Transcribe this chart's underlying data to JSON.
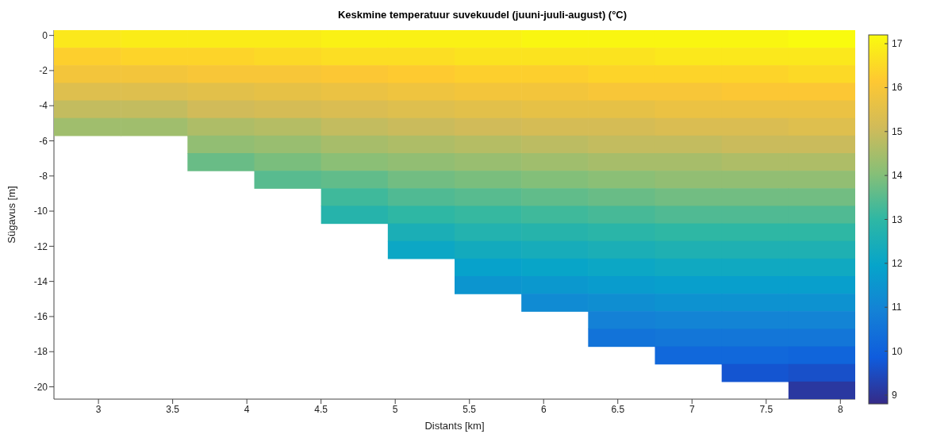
{
  "chart_data": {
    "type": "heatmap",
    "title": "Keskmine temperatuur suvekuudel (juuni-juuli-august) (°C)",
    "xlabel": "Distants [km]",
    "ylabel": "Sügavus [m]",
    "x": [
      2.925,
      3.375,
      3.825,
      4.275,
      4.725,
      5.175,
      5.625,
      6.075,
      6.525,
      6.975,
      7.425,
      7.875
    ],
    "cells": [
      [
        16.8,
        16.9,
        16.9,
        16.9,
        17.0,
        17.0,
        17.0,
        17.1,
        17.1,
        17.1,
        17.1,
        17.2
      ],
      [
        16.3,
        16.4,
        16.4,
        16.5,
        16.6,
        16.6,
        16.7,
        16.7,
        16.7,
        16.8,
        16.8,
        16.8
      ],
      [
        15.9,
        15.9,
        16.0,
        16.0,
        16.1,
        16.2,
        16.3,
        16.3,
        16.4,
        16.4,
        16.4,
        16.5
      ],
      [
        15.4,
        15.4,
        15.5,
        15.6,
        15.7,
        15.8,
        15.9,
        15.9,
        16.0,
        16.0,
        16.1,
        16.1
      ],
      [
        14.9,
        14.9,
        15.1,
        15.2,
        15.3,
        15.4,
        15.5,
        15.6,
        15.6,
        15.7,
        15.7,
        15.7
      ],
      [
        14.4,
        14.4,
        14.6,
        14.7,
        14.9,
        15.0,
        15.1,
        15.2,
        15.2,
        15.3,
        15.3,
        15.4
      ],
      [
        null,
        null,
        14.2,
        14.3,
        14.5,
        14.6,
        14.7,
        14.8,
        14.9,
        14.9,
        15.0,
        15.0
      ],
      [
        null,
        null,
        13.7,
        13.9,
        14.1,
        14.2,
        14.3,
        14.4,
        14.5,
        14.5,
        14.6,
        14.6
      ],
      [
        null,
        null,
        null,
        13.5,
        13.6,
        13.8,
        13.9,
        14.0,
        14.1,
        14.2,
        14.2,
        14.2
      ],
      [
        null,
        null,
        null,
        null,
        13.2,
        13.4,
        13.5,
        13.6,
        13.7,
        13.8,
        13.8,
        13.8
      ],
      [
        null,
        null,
        null,
        null,
        12.8,
        13.0,
        13.1,
        13.2,
        13.3,
        13.4,
        13.4,
        13.4
      ],
      [
        null,
        null,
        null,
        null,
        null,
        12.5,
        12.7,
        12.8,
        12.9,
        13.0,
        13.0,
        13.0
      ],
      [
        null,
        null,
        null,
        null,
        null,
        12.1,
        12.3,
        12.4,
        12.5,
        12.6,
        12.6,
        12.6
      ],
      [
        null,
        null,
        null,
        null,
        null,
        null,
        11.9,
        12.0,
        12.1,
        12.2,
        12.2,
        12.2
      ],
      [
        null,
        null,
        null,
        null,
        null,
        null,
        11.5,
        11.6,
        11.7,
        11.8,
        11.8,
        11.8
      ],
      [
        null,
        null,
        null,
        null,
        null,
        null,
        null,
        11.2,
        11.3,
        11.4,
        11.4,
        11.4
      ],
      [
        null,
        null,
        null,
        null,
        null,
        null,
        null,
        null,
        10.9,
        11.0,
        11.0,
        11.0
      ],
      [
        null,
        null,
        null,
        null,
        null,
        null,
        null,
        null,
        10.5,
        10.6,
        10.6,
        10.6
      ],
      [
        null,
        null,
        null,
        null,
        null,
        null,
        null,
        null,
        null,
        10.2,
        10.2,
        10.1
      ],
      [
        null,
        null,
        null,
        null,
        null,
        null,
        null,
        null,
        null,
        null,
        9.7,
        9.6
      ],
      [
        null,
        null,
        null,
        null,
        null,
        null,
        null,
        null,
        null,
        null,
        null,
        9.1
      ]
    ],
    "xlim": [
      2.7,
      8.1
    ],
    "xticks": [
      3,
      3.5,
      4,
      4.5,
      5,
      5.5,
      6,
      6.5,
      7,
      7.5,
      8
    ],
    "ylim": [
      -20.7,
      0.3
    ],
    "yticks": [
      0,
      -2,
      -4,
      -6,
      -8,
      -10,
      -12,
      -14,
      -16,
      -18,
      -20
    ],
    "clim": [
      8.8,
      17.2
    ],
    "cticks": [
      9,
      10,
      11,
      12,
      13,
      14,
      15,
      16,
      17
    ]
  }
}
